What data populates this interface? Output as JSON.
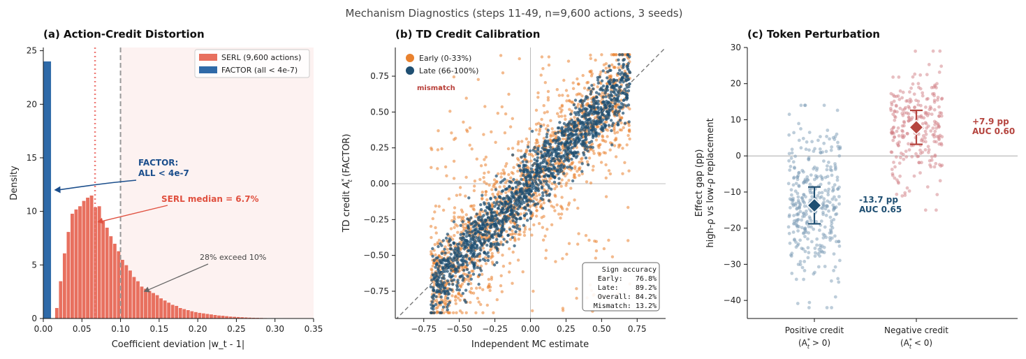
{
  "figure": {
    "suptitle": "Mechanism Diagnostics (steps 11-49, n=9,600 actions, 3 seeds)"
  },
  "colors": {
    "serl": "#e8705f",
    "factor": "#2f6aa8",
    "early": "#e9822f",
    "late": "#1f4f72",
    "pos": "#7b9cb5",
    "neg": "#d17f85",
    "pos_marker": "#1f4f72",
    "neg_marker": "#b5453f",
    "shade": "#fdf2f1",
    "factor_annot": "#1b4e8c",
    "serl_annot": "#e0503f",
    "mismatch": "#b8403b"
  },
  "chart_data": [
    {
      "type": "bar",
      "panel": "a",
      "title": "(a) Action-Credit Distortion",
      "xlabel": "Coefficient deviation |w_t - 1|",
      "ylabel": "Density",
      "xlim": [
        0,
        0.35
      ],
      "ylim": [
        0,
        25.3
      ],
      "xticks": [
        "0.00",
        "0.05",
        "0.10",
        "0.15",
        "0.20",
        "0.25",
        "0.30",
        "0.35"
      ],
      "yticks": [
        "0",
        "5",
        "10",
        "15",
        "20",
        "25"
      ],
      "grid": false,
      "legend_position": "top-right",
      "shaded_region_from_x": 0.1,
      "serl_median_line_x": 0.067,
      "threshold_line_x": 0.1,
      "series": [
        {
          "name": "FACTOR (all < 4e-7)",
          "bins": [
            {
              "x0": 0.0,
              "x1": 0.01,
              "value": 24.0
            }
          ]
        },
        {
          "name": "SERL (9,600 actions)",
          "bin_width": 0.005,
          "bins_start": 0.015,
          "values": [
            1.0,
            3.5,
            6.1,
            8.1,
            9.8,
            10.2,
            10.5,
            11.0,
            11.3,
            11.5,
            10.4,
            10.5,
            9.1,
            8.5,
            7.7,
            7.0,
            6.3,
            5.5,
            5.0,
            4.5,
            3.9,
            3.5,
            3.0,
            2.8,
            2.6,
            2.4,
            2.2,
            1.9,
            1.7,
            1.5,
            1.3,
            1.2,
            1.0,
            0.9,
            0.8,
            0.7,
            0.62,
            0.55,
            0.5,
            0.45,
            0.4,
            0.35,
            0.3,
            0.28,
            0.24,
            0.2,
            0.18,
            0.16,
            0.14,
            0.12,
            0.1,
            0.09,
            0.08,
            0.07,
            0.06,
            0.05,
            0.04,
            0.03,
            0.03,
            0.02,
            0.02,
            0.015,
            0.01,
            0.01,
            0.01,
            0.01,
            0.01
          ]
        }
      ],
      "annotations": [
        {
          "text1": "FACTOR:",
          "text2": "ALL < 4e-7",
          "arrow_to": [
            0.014,
            12.0
          ]
        },
        {
          "text": "SERL median = 6.7%",
          "arrow_to": [
            0.068,
            9.0
          ]
        },
        {
          "text": "28% exceed 10%",
          "arrow_to": [
            0.13,
            2.5
          ]
        }
      ]
    },
    {
      "type": "scatter",
      "panel": "b",
      "title": "(b) TD Credit Calibration",
      "xlabel": "Independent MC estimate",
      "ylabel_main": "TD credit ",
      "ylabel_sym": "A",
      "ylabel_sup": "*",
      "ylabel_sub": "t",
      "ylabel_tail": " (FACTOR)",
      "xlim": [
        -0.95,
        0.95
      ],
      "ylim": [
        -0.94,
        0.95
      ],
      "xticks": [
        "−0.75",
        "−0.50",
        "−0.25",
        "0.00",
        "0.25",
        "0.50",
        "0.75"
      ],
      "yticks": [
        "−0.75",
        "−0.50",
        "−0.25",
        "0.00",
        "0.25",
        "0.50",
        "0.75"
      ],
      "grid": false,
      "legend_position": "top-left",
      "series": [
        {
          "name": "Early (0-33%)",
          "n_points": 1600,
          "spread": 0.2,
          "clip": [
            -0.9,
            0.9
          ]
        },
        {
          "name": "Late (66-100%)",
          "n_points": 1600,
          "spread": 0.11,
          "clip": [
            -0.9,
            0.9
          ]
        }
      ],
      "annotation_mismatch": "mismatch",
      "sign_accuracy": {
        "title": "Sign accuracy",
        "lines": [
          "Early:   76.8%",
          "Late:    89.2%",
          "Overall: 84.2%",
          "Mismatch: 13.2%"
        ]
      }
    },
    {
      "type": "scatter",
      "panel": "c",
      "title": "(c) Token Perturbation",
      "ylabel_line1": "Effect gap (pp)",
      "ylabel_line2": "high-ρ vs low-ρ replacement",
      "ylim": [
        -45,
        30
      ],
      "yticks": [
        "−40",
        "−30",
        "−20",
        "−10",
        "0",
        "10",
        "20",
        "30"
      ],
      "grid": false,
      "categories": [
        {
          "label": "Positive credit",
          "sub_main": "(A",
          "sub_sup": "*",
          "sub_sub": "t",
          "sub_tail": " > 0)"
        },
        {
          "label": "Negative credit",
          "sub_main": "(A",
          "sub_sup": "*",
          "sub_sub": "t",
          "sub_tail": " < 0)"
        }
      ],
      "series": [
        {
          "name": "Positive credit",
          "mean": -13.7,
          "ci": [
            -18.8,
            -8.6
          ],
          "n_points": 360,
          "y_range": [
            -42,
            14
          ],
          "annot1": "-13.7 pp",
          "annot2": "AUC 0.65"
        },
        {
          "name": "Negative credit",
          "mean": 7.9,
          "ci": [
            3.2,
            12.6
          ],
          "n_points": 260,
          "y_range": [
            -15,
            29
          ],
          "annot1": "+7.9 pp",
          "annot2": "AUC 0.60"
        }
      ]
    }
  ]
}
